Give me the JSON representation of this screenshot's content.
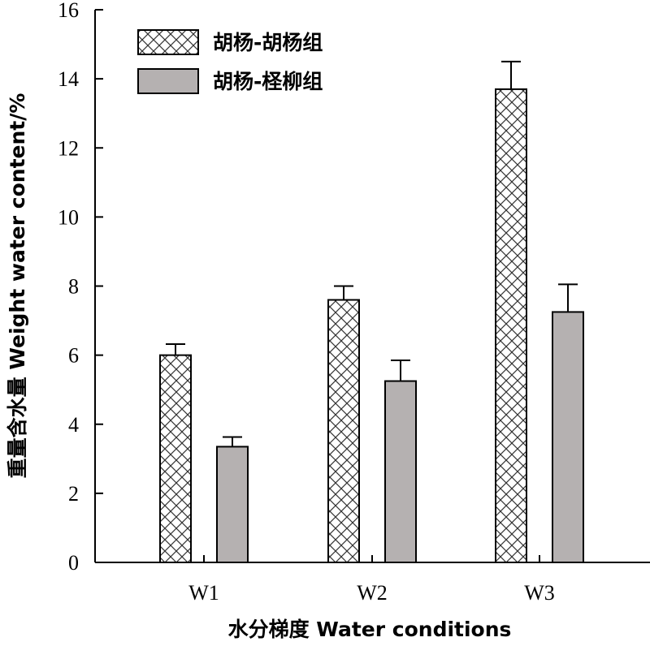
{
  "chart_data": {
    "type": "bar",
    "title": "",
    "xlabel": "水分梯度 Water conditions",
    "ylabel": "重量含水量 Weight water content/%",
    "categories": [
      "W1",
      "W2",
      "W3"
    ],
    "ylim": [
      0,
      16
    ],
    "yticks": [
      0,
      2,
      4,
      6,
      8,
      10,
      12,
      14,
      16
    ],
    "grid": false,
    "legend_position": "top-left",
    "series": [
      {
        "name": "胡杨-胡杨组",
        "values": [
          6.0,
          7.6,
          13.7
        ],
        "errors": [
          0.32,
          0.4,
          0.8
        ],
        "fill": "crosshatch"
      },
      {
        "name": "胡杨-柽柳组",
        "values": [
          3.35,
          5.25,
          7.25
        ],
        "errors": [
          0.28,
          0.6,
          0.8
        ],
        "fill": "#b5b1b1"
      }
    ]
  }
}
